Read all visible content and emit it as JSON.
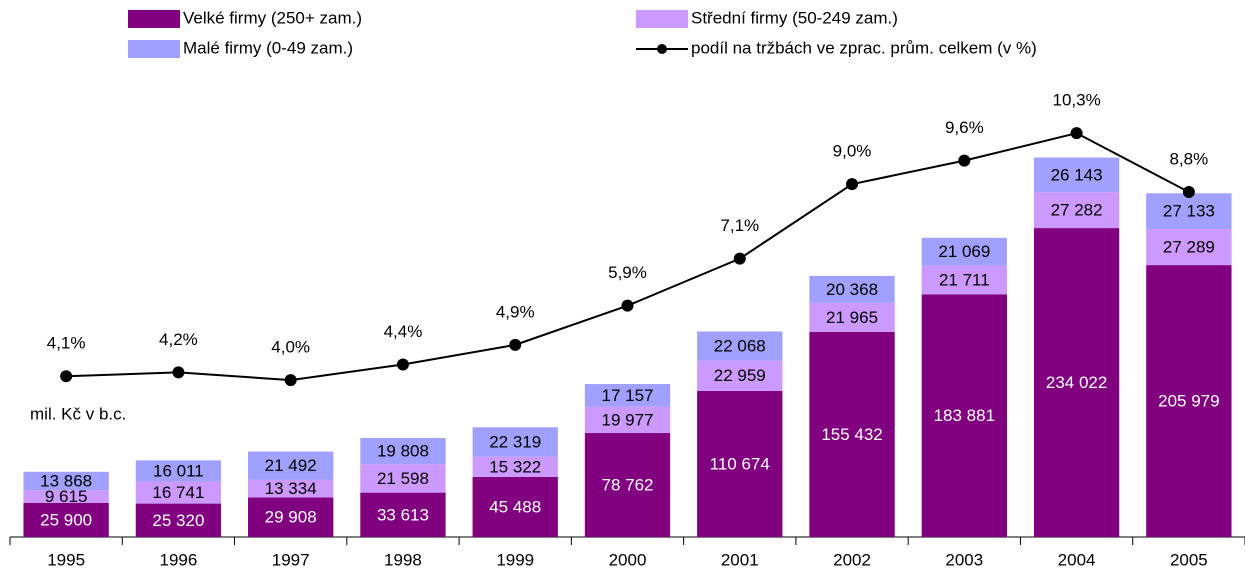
{
  "chart_data": {
    "type": "bar",
    "stacked": true,
    "annotation": "mil. Kč v b.c.",
    "categories": [
      "1995",
      "1996",
      "1997",
      "1998",
      "1999",
      "2000",
      "2001",
      "2002",
      "2003",
      "2004",
      "2005"
    ],
    "series": [
      {
        "name": "Velké firmy (250+ zam.)",
        "color": "#800080",
        "label_color": "#ffffff",
        "values": [
          25900,
          25320,
          29908,
          33613,
          45488,
          78762,
          110674,
          155432,
          183881,
          234022,
          205979
        ],
        "value_labels": [
          "25 900",
          "25 320",
          "29 908",
          "33 613",
          "45 488",
          "78 762",
          "110 674",
          "155 432",
          "183 881",
          "234 022",
          "205 979"
        ]
      },
      {
        "name": "Střední firmy (50-249 zam.)",
        "color": "#cc99ff",
        "label_color": "#000000",
        "values": [
          9615,
          16741,
          13334,
          21598,
          15322,
          19977,
          22959,
          21965,
          21711,
          27282,
          27289
        ],
        "value_labels": [
          "9 615",
          "16 741",
          "13 334",
          "21 598",
          "15 322",
          "19 977",
          "22 959",
          "21 965",
          "21 711",
          "27 282",
          "27 289"
        ]
      },
      {
        "name": "Malé firmy (0-49 zam.)",
        "color": "#a0a0ff",
        "label_color": "#000000",
        "values": [
          13868,
          16011,
          21492,
          19808,
          22319,
          17157,
          22068,
          20368,
          21069,
          26143,
          27133
        ],
        "value_labels": [
          "13 868",
          "16 011",
          "21 492",
          "19 808",
          "22 319",
          "17 157",
          "22 068",
          "20 368",
          "21 069",
          "26 143",
          "27 133"
        ]
      },
      {
        "name": "podíl na tržbách ve zprac. prům. celkem (v %)",
        "color": "#000000",
        "type": "line",
        "axis": "y2",
        "values": [
          4.1,
          4.2,
          4.0,
          4.4,
          4.9,
          5.9,
          7.1,
          9.0,
          9.6,
          10.3,
          8.8
        ],
        "value_labels": [
          "4,1%",
          "4,2%",
          "4,0%",
          "4,4%",
          "4,9%",
          "5,9%",
          "7,1%",
          "9,0%",
          "9,6%",
          "10,3%",
          "8,8%"
        ]
      }
    ],
    "ylim": [
      0,
      300000
    ],
    "y2lim": [
      0,
      10.1
    ]
  }
}
